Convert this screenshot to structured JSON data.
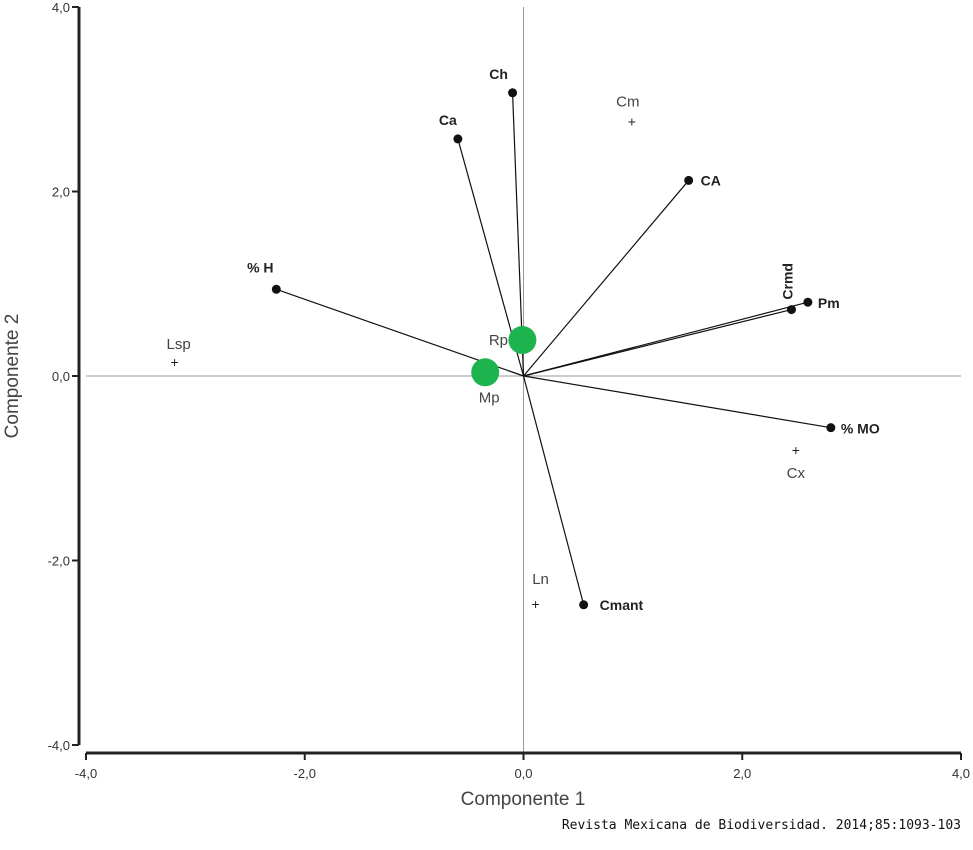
{
  "chart_data": {
    "type": "scatter",
    "xlabel": "Componente 1",
    "ylabel": "Componente 2",
    "xlim": [
      -4,
      4
    ],
    "ylim": [
      -4,
      4
    ],
    "xticks": [
      "-4,0",
      "-2,0",
      "0,0",
      "2,0",
      "4,0"
    ],
    "yticks": [
      "4,0",
      "2,0",
      "0,0",
      "-2,0",
      "-4,0"
    ],
    "xtick_values": [
      -4,
      -2,
      0,
      2,
      4
    ],
    "ytick_values": [
      4,
      2,
      0,
      -2,
      -4
    ],
    "reference_lines": {
      "x": 0,
      "y": 0
    },
    "vectors": [
      {
        "label": "Ch",
        "x": -0.1,
        "y": 3.07
      },
      {
        "label": "Ca",
        "x": -0.6,
        "y": 2.57
      },
      {
        "label": "CA",
        "x": 1.51,
        "y": 2.12
      },
      {
        "label": "Crmd",
        "x": 2.45,
        "y": 0.72
      },
      {
        "label": "Pm",
        "x": 2.6,
        "y": 0.8
      },
      {
        "label": "% MO",
        "x": 2.81,
        "y": -0.56
      },
      {
        "label": "Cmant",
        "x": 0.55,
        "y": -2.48
      },
      {
        "label": "% H",
        "x": -2.26,
        "y": 0.94
      }
    ],
    "sites": [
      {
        "label": "Cm",
        "x": 0.99,
        "y": 2.76
      },
      {
        "label": "Lsp",
        "x": -3.19,
        "y": 0.15
      },
      {
        "label": "Cx",
        "x": 2.49,
        "y": -0.8
      },
      {
        "label": "Ln",
        "x": 0.11,
        "y": -2.47
      }
    ],
    "highlighted": [
      {
        "label": "Rp",
        "x": -0.01,
        "y": 0.39
      },
      {
        "label": "Mp",
        "x": -0.35,
        "y": 0.04
      }
    ],
    "colors": {
      "vector": "#111111",
      "highlight": "#1db34f",
      "reference": "#999999"
    }
  },
  "source": "Revista Mexicana de Biodiversidad. 2014;85:1093-103"
}
